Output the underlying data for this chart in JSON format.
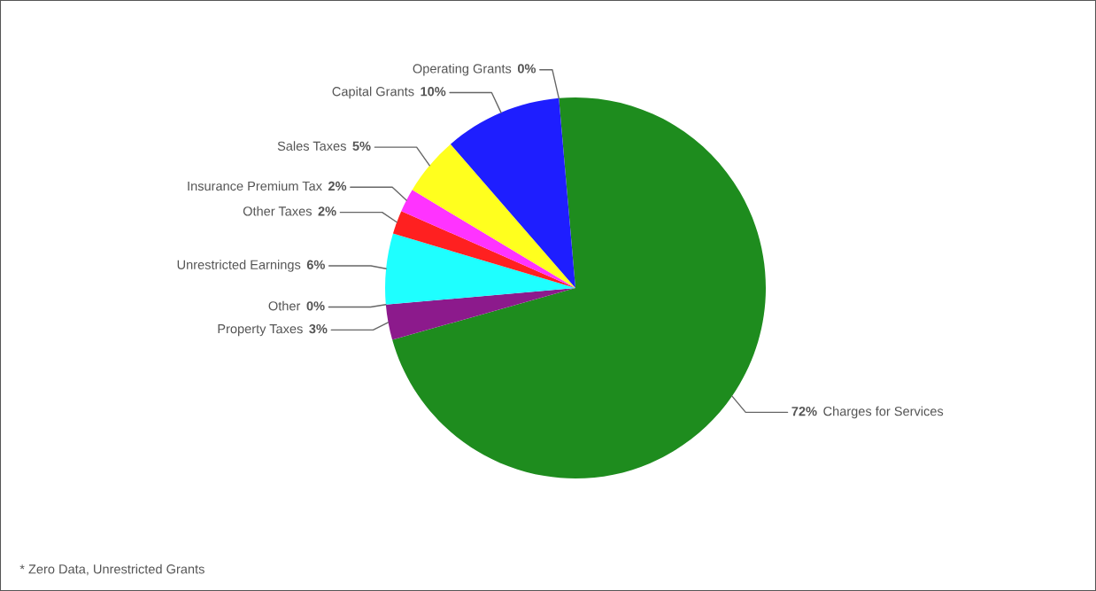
{
  "chart_data": {
    "type": "pie",
    "categories": [
      "Operating Grants",
      "Charges for Services",
      "Property Taxes",
      "Other",
      "Unrestricted Earnings",
      "Other Taxes",
      "Insurance Premium Tax",
      "Sales Taxes",
      "Capital Grants"
    ],
    "values": [
      0,
      72,
      3,
      0,
      6,
      2,
      2,
      5,
      10
    ],
    "value_labels": [
      "0%",
      "72%",
      "3%",
      "0%",
      "6%",
      "2%",
      "2%",
      "5%",
      "10%"
    ],
    "colors": [
      "#2ecc2e",
      "#1e8c1e",
      "#8c1a8c",
      "#ff8c00",
      "#1effff",
      "#ff2020",
      "#ff33ff",
      "#ffff1e",
      "#1e1eff"
    ],
    "annotations": [
      "* Zero Data, Unrestricted Grants"
    ]
  }
}
